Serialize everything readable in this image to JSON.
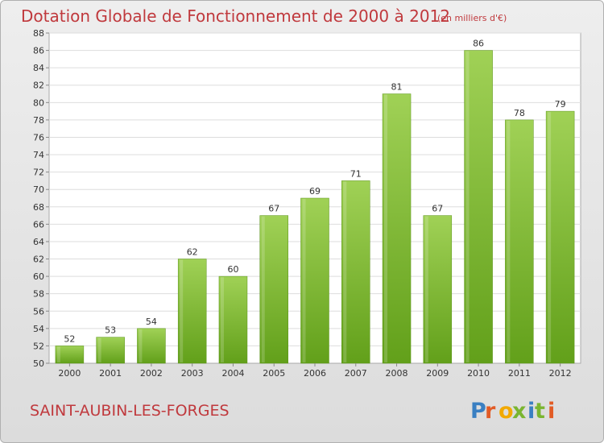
{
  "header": {
    "title": "Dotation Globale de Fonctionnement de 2000 à 2012",
    "unit": "(en milliers d'€)"
  },
  "footer": {
    "commune": "SAINT-AUBIN-LES-FORGES",
    "logo_text": "Proxiti"
  },
  "colors": {
    "title": "#c0393d",
    "bar_light": "#a0d156",
    "bar_dark": "#62a01a",
    "logo": [
      "#3a7fc2",
      "#e25b25",
      "#f2a900",
      "#7ab530",
      "#3a7fc2",
      "#7ab530",
      "#e25b25"
    ]
  },
  "chart_data": {
    "type": "bar",
    "categories": [
      "2000",
      "2001",
      "2002",
      "2003",
      "2004",
      "2005",
      "2006",
      "2007",
      "2008",
      "2009",
      "2010",
      "2011",
      "2012"
    ],
    "values": [
      52,
      53,
      54,
      62,
      60,
      67,
      69,
      71,
      81,
      67,
      86,
      78,
      79
    ],
    "title": "Dotation Globale de Fonctionnement de 2000 à 2012",
    "subtitle": "(en milliers d'€)",
    "xlabel": "",
    "ylabel": "",
    "ylim": [
      50,
      88
    ],
    "yticks": [
      50,
      52,
      54,
      56,
      58,
      60,
      62,
      64,
      66,
      68,
      70,
      72,
      74,
      76,
      78,
      80,
      82,
      84,
      86,
      88
    ],
    "grid": true,
    "data_labels": true
  }
}
